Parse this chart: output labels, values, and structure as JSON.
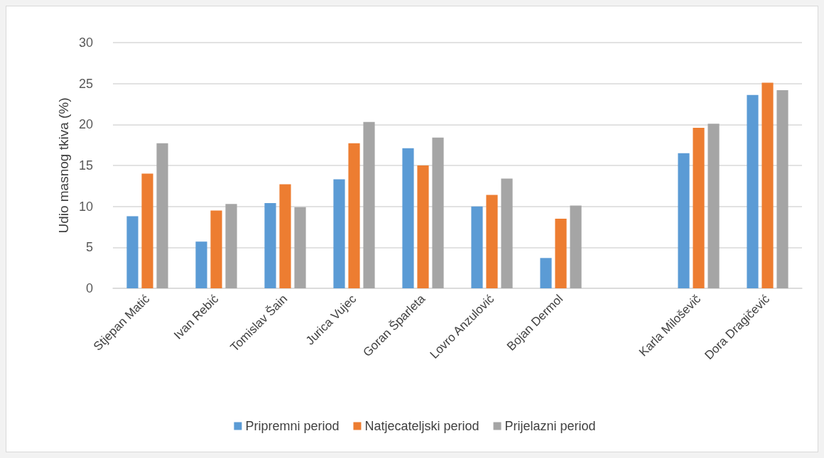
{
  "chart_data": {
    "type": "bar",
    "ylabel": "Udio masnog tkiva (%)",
    "categories": [
      "Stjepan Matić",
      "Ivan Rebić",
      "Tomislav Šain",
      "Jurica Vujec",
      "Goran Šparleta",
      "Lovro Anzulović",
      "Bojan Dermol",
      null,
      "Karla Miloševič",
      "Dora Dragičević"
    ],
    "series": [
      {
        "name": "Pripremni period",
        "color": "#5b9bd5",
        "values": [
          8.8,
          5.7,
          10.4,
          13.3,
          17.1,
          10.0,
          3.7,
          null,
          16.5,
          23.6
        ]
      },
      {
        "name": "Natjecateljski period",
        "color": "#ed7d31",
        "values": [
          14.0,
          9.5,
          12.7,
          17.7,
          15.0,
          11.4,
          8.5,
          null,
          19.6,
          25.1
        ]
      },
      {
        "name": "Prijelazni period",
        "color": "#a5a5a5",
        "values": [
          17.7,
          10.3,
          9.9,
          20.3,
          18.4,
          13.4,
          10.1,
          null,
          20.1,
          24.2
        ]
      }
    ],
    "ylim": [
      0,
      30
    ],
    "yticks": [
      0,
      5,
      10,
      15,
      20,
      25,
      30
    ],
    "grid": "y",
    "legend": "bottom"
  }
}
